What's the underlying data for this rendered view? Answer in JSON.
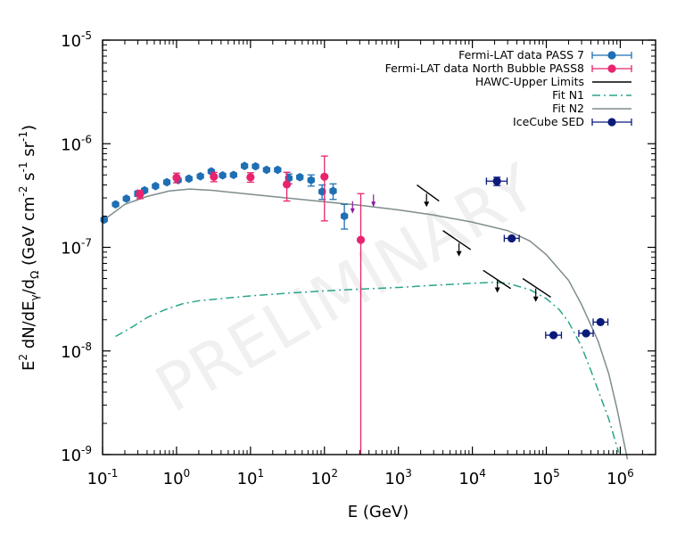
{
  "chart_data": {
    "type": "scatter",
    "title": "",
    "xlabel": "E (GeV)",
    "ylabel_parts": {
      "prefix": "E",
      "sup1": "2",
      "mid1": " dN/dE",
      "sub1": "γ",
      "mid2": "/d",
      "sub2": "Ω",
      "mid3": " (GeV cm",
      "sup2": "-2",
      "mid4": " s",
      "sup3": "-1",
      "mid5": " sr",
      "sup4": "-1",
      "suffix": ")"
    },
    "xscale": "log",
    "yscale": "log",
    "xlim": [
      0.1,
      3000000
    ],
    "ylim": [
      1e-09,
      1e-05
    ],
    "x_ticks": [
      {
        "value": 0.1,
        "base": "10",
        "exp": "-1"
      },
      {
        "value": 1,
        "base": "10",
        "exp": "0"
      },
      {
        "value": 10,
        "base": "10",
        "exp": "1"
      },
      {
        "value": 100,
        "base": "10",
        "exp": "2"
      },
      {
        "value": 1000,
        "base": "10",
        "exp": "3"
      },
      {
        "value": 10000,
        "base": "10",
        "exp": "4"
      },
      {
        "value": 100000,
        "base": "10",
        "exp": "5"
      },
      {
        "value": 1000000,
        "base": "10",
        "exp": "6"
      }
    ],
    "y_ticks": [
      {
        "value": 1e-09,
        "base": "10",
        "exp": "-9"
      },
      {
        "value": 1e-08,
        "base": "10",
        "exp": "-8"
      },
      {
        "value": 1e-07,
        "base": "10",
        "exp": "-7"
      },
      {
        "value": 1e-06,
        "base": "10",
        "exp": "-6"
      },
      {
        "value": 1e-05,
        "base": "10",
        "exp": "-5"
      }
    ],
    "legend_position": "top-right",
    "watermark": "PRELIMINARY",
    "series": [
      {
        "name": "Fermi-LAT data PASS 7",
        "kind": "points",
        "color": "#1f6fb4",
        "points": [
          {
            "x": 0.105,
            "y": 1.85e-07
          },
          {
            "x": 0.15,
            "y": 2.6e-07
          },
          {
            "x": 0.21,
            "y": 2.95e-07
          },
          {
            "x": 0.3,
            "y": 3.3e-07,
            "ylo": 3.1e-07,
            "yhi": 3.5e-07
          },
          {
            "x": 0.37,
            "y": 3.55e-07
          },
          {
            "x": 0.52,
            "y": 3.9e-07
          },
          {
            "x": 0.74,
            "y": 4.25e-07
          },
          {
            "x": 1.05,
            "y": 4.45e-07
          },
          {
            "x": 1.47,
            "y": 4.6e-07
          },
          {
            "x": 2.1,
            "y": 4.85e-07
          },
          {
            "x": 2.95,
            "y": 5.4e-07
          },
          {
            "x": 4.2,
            "y": 4.95e-07
          },
          {
            "x": 5.9,
            "y": 5e-07
          },
          {
            "x": 8.3,
            "y": 6.1e-07
          },
          {
            "x": 11.7,
            "y": 6.05e-07
          },
          {
            "x": 16.5,
            "y": 5.6e-07
          },
          {
            "x": 23.3,
            "y": 5.6e-07
          },
          {
            "x": 33,
            "y": 4.65e-07,
            "ylo": 4.1e-07,
            "yhi": 5.1e-07
          },
          {
            "x": 46.5,
            "y": 4.75e-07
          },
          {
            "x": 66,
            "y": 4.45e-07,
            "ylo": 3.9e-07,
            "yhi": 5e-07
          },
          {
            "x": 93,
            "y": 3.45e-07,
            "ylo": 2.9e-07,
            "yhi": 4e-07
          },
          {
            "x": 131,
            "y": 3.5e-07,
            "ylo": 2.9e-07,
            "yhi": 4.1e-07
          },
          {
            "x": 186,
            "y": 2e-07,
            "ylo": 1.5e-07,
            "yhi": 2.6e-07
          }
        ]
      },
      {
        "name": "Fermi-LAT data North Bubble PASS8",
        "kind": "points",
        "color": "#e8246e",
        "points": [
          {
            "x": 0.32,
            "y": 3.25e-07,
            "ylo": 2.95e-07,
            "yhi": 3.55e-07
          },
          {
            "x": 1.0,
            "y": 4.7e-07,
            "ylo": 4.2e-07,
            "yhi": 5.2e-07
          },
          {
            "x": 3.2,
            "y": 4.8e-07,
            "ylo": 4.3e-07,
            "yhi": 5.3e-07
          },
          {
            "x": 10,
            "y": 4.75e-07,
            "ylo": 4.25e-07,
            "yhi": 5.25e-07
          },
          {
            "x": 31,
            "y": 4.05e-07,
            "ylo": 2.8e-07,
            "yhi": 5.3e-07
          },
          {
            "x": 100,
            "y": 4.8e-07,
            "ylo": 1.8e-07,
            "yhi": 7.6e-07
          },
          {
            "x": 310,
            "y": 1.18e-07,
            "ylo": 1e-09,
            "yhi": 3.3e-07
          }
        ],
        "upper_limits": [
          {
            "x": 240,
            "y": 2.2e-07
          },
          {
            "x": 460,
            "y": 2.55e-07
          }
        ]
      },
      {
        "name": "HAWC-Upper Limits",
        "kind": "segments",
        "color": "#000000",
        "segments": [
          {
            "x1": 1780,
            "y1": 4e-07,
            "x2": 3550,
            "y2": 2.8e-07,
            "arrow_x": 2400,
            "arrow_y": 3.3e-07
          },
          {
            "x1": 4000,
            "y1": 1.45e-07,
            "x2": 9500,
            "y2": 9.5e-08,
            "arrow_x": 6600,
            "arrow_y": 1.1e-07
          },
          {
            "x1": 14000,
            "y1": 6e-08,
            "x2": 33000,
            "y2": 4e-08,
            "arrow_x": 21800,
            "arrow_y": 4.9e-08
          },
          {
            "x1": 48000,
            "y1": 5e-08,
            "x2": 115000,
            "y2": 3.3e-08,
            "arrow_x": 72000,
            "arrow_y": 4e-08
          }
        ]
      },
      {
        "name": "Fit N1",
        "kind": "line",
        "color": "#2aa58a",
        "dash": "dash-dot",
        "points": [
          [
            0.15,
            1.38e-08
          ],
          [
            0.25,
            1.7e-08
          ],
          [
            0.4,
            2.1e-08
          ],
          [
            0.7,
            2.5e-08
          ],
          [
            1.2,
            2.85e-08
          ],
          [
            2,
            3.05e-08
          ],
          [
            5,
            3.25e-08
          ],
          [
            10,
            3.4e-08
          ],
          [
            30,
            3.6e-08
          ],
          [
            100,
            3.8e-08
          ],
          [
            300,
            3.95e-08
          ],
          [
            1000,
            4.1e-08
          ],
          [
            3000,
            4.3e-08
          ],
          [
            10000,
            4.5e-08
          ],
          [
            20000,
            4.6e-08
          ],
          [
            30000,
            4.5e-08
          ],
          [
            60000,
            3.9e-08
          ],
          [
            100000,
            3.2e-08
          ],
          [
            150000,
            2.5e-08
          ],
          [
            200000,
            1.9e-08
          ],
          [
            300000,
            1.1e-08
          ],
          [
            400000,
            6.5e-09
          ],
          [
            500000,
            4.2e-09
          ],
          [
            700000,
            2.2e-09
          ],
          [
            950000,
            1.05e-09
          ]
        ]
      },
      {
        "name": "Fit N2",
        "kind": "line",
        "color": "#7f8c8d",
        "dash": "solid",
        "points": [
          [
            0.1,
            1.8e-07
          ],
          [
            0.2,
            2.6e-07
          ],
          [
            0.4,
            3.1e-07
          ],
          [
            0.8,
            3.5e-07
          ],
          [
            1.5,
            3.65e-07
          ],
          [
            3,
            3.55e-07
          ],
          [
            10,
            3.25e-07
          ],
          [
            30,
            3e-07
          ],
          [
            100,
            2.75e-07
          ],
          [
            300,
            2.55e-07
          ],
          [
            1000,
            2.3e-07
          ],
          [
            3000,
            2.05e-07
          ],
          [
            10000,
            1.75e-07
          ],
          [
            30000,
            1.45e-07
          ],
          [
            60000,
            1.15e-07
          ],
          [
            100000,
            8.5e-08
          ],
          [
            200000,
            4.8e-08
          ],
          [
            300000,
            2.8e-08
          ],
          [
            500000,
            1.25e-08
          ],
          [
            700000,
            6e-09
          ],
          [
            900000,
            2.8e-09
          ],
          [
            1100000,
            1.4e-09
          ],
          [
            1250000,
            9e-10
          ]
        ]
      },
      {
        "name": "IceCube SED",
        "kind": "points",
        "color": "#0a1a7a",
        "points": [
          {
            "x": 21500,
            "y": 4.35e-07,
            "xlo": 15500,
            "xhi": 29500,
            "ylo": 3.95e-07,
            "yhi": 4.75e-07
          },
          {
            "x": 34000,
            "y": 1.22e-07,
            "xlo": 27000,
            "xhi": 43000
          },
          {
            "x": 125000,
            "y": 1.42e-08,
            "xlo": 98000,
            "xhi": 160000
          },
          {
            "x": 345000,
            "y": 1.48e-08,
            "xlo": 275000,
            "xhi": 430000
          },
          {
            "x": 540000,
            "y": 1.9e-08,
            "xlo": 430000,
            "xhi": 680000
          }
        ]
      }
    ]
  }
}
